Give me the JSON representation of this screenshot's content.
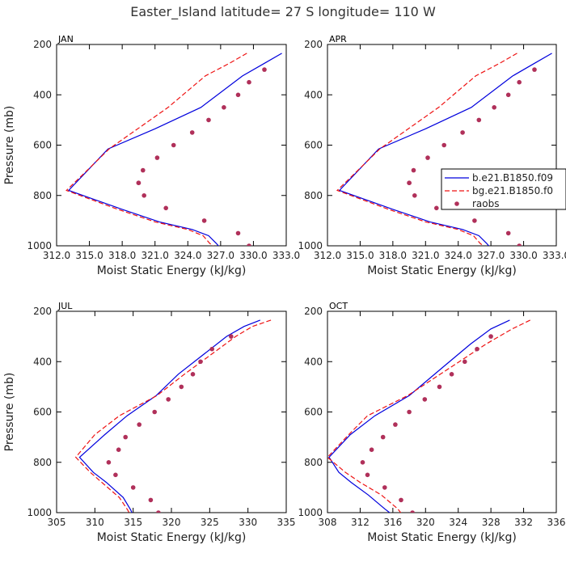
{
  "title": "Easter_Island   latitude= 27 S longitude= 110 W",
  "legend": {
    "entries": [
      {
        "label": "b.e21.B1850.f09",
        "style": "solid",
        "color": "#0000dd"
      },
      {
        "label": "bg.e21.B1850.f0",
        "style": "dashed",
        "color": "#ee1111"
      },
      {
        "label": "raobs",
        "style": "dot",
        "color": "#b0305a"
      }
    ]
  },
  "colors": {
    "model1": "#0000dd",
    "model2": "#ee1111",
    "raobs": "#b0305a"
  },
  "chart_data": [
    {
      "type": "line",
      "panel": "JAN",
      "xlabel": "Moist Static Energy (kJ/kg)",
      "ylabel": "Pressure (mb)",
      "xlim": [
        312.0,
        333.0
      ],
      "ylim": [
        200,
        1000
      ],
      "y_reversed": true,
      "xticks": [
        312.0,
        315.0,
        318.0,
        321.0,
        324.0,
        327.0,
        330.0,
        333.0
      ],
      "xtick_labels": [
        "312.0",
        "315.0",
        "318.0",
        "321.0",
        "324.0",
        "327.0",
        "330.0",
        "333.0"
      ],
      "yticks": [
        200,
        400,
        600,
        800,
        1000
      ],
      "series": [
        {
          "name": "b.e21.B1850.f09",
          "kind": "line",
          "style": "solid",
          "x": [
            332.6,
            331.0,
            329.0,
            325.2,
            321.0,
            316.7,
            313.1,
            318.0,
            321.4,
            324.4,
            325.9,
            326.6,
            327.2
          ],
          "y": [
            235,
            275,
            325,
            450,
            535,
            615,
            780,
            855,
            905,
            935,
            960,
            990,
            1020
          ]
        },
        {
          "name": "bg.e21.B1850.f0",
          "kind": "line",
          "style": "dashed",
          "x": [
            329.4,
            327.8,
            325.6,
            322.2,
            316.8,
            314.8,
            312.9,
            317.6,
            321.0,
            324.0,
            325.4,
            326.0,
            326.6
          ],
          "y": [
            235,
            275,
            325,
            450,
            615,
            700,
            780,
            855,
            905,
            935,
            960,
            990,
            1010
          ]
        },
        {
          "name": "raobs",
          "kind": "scatter",
          "x": [
            331.0,
            329.6,
            328.6,
            327.3,
            325.9,
            324.4,
            322.7,
            321.2,
            319.9,
            319.5,
            319.5,
            320.0,
            322.0,
            325.5,
            328.6,
            329.6
          ],
          "y": [
            300,
            350,
            400,
            450,
            500,
            550,
            600,
            650,
            700,
            750,
            750,
            800,
            850,
            900,
            950,
            1000
          ]
        }
      ]
    },
    {
      "type": "line",
      "panel": "APR",
      "xlabel": "Moist Static Energy (kJ/kg)",
      "ylabel": "",
      "xlim": [
        312.0,
        333.0
      ],
      "ylim": [
        200,
        1000
      ],
      "y_reversed": true,
      "xticks": [
        312.0,
        315.0,
        318.0,
        321.0,
        324.0,
        327.0,
        330.0,
        333.0
      ],
      "xtick_labels": [
        "312.0",
        "315.0",
        "318.0",
        "321.0",
        "324.0",
        "327.0",
        "330.0",
        "333.0"
      ],
      "yticks": [
        200,
        400,
        600,
        800,
        1000
      ],
      "series": [
        {
          "name": "b.e21.B1850.f09",
          "kind": "line",
          "style": "solid",
          "x": [
            332.6,
            331.0,
            329.0,
            325.2,
            321.0,
            316.7,
            313.1,
            318.0,
            321.4,
            324.4,
            325.9,
            326.6,
            327.2
          ],
          "y": [
            235,
            275,
            325,
            450,
            535,
            615,
            780,
            855,
            905,
            935,
            960,
            990,
            1020
          ]
        },
        {
          "name": "bg.e21.B1850.f0",
          "kind": "line",
          "style": "dashed",
          "x": [
            329.4,
            327.8,
            325.6,
            322.2,
            316.8,
            314.8,
            312.9,
            317.6,
            321.0,
            324.0,
            325.4,
            326.0,
            326.6
          ],
          "y": [
            235,
            275,
            325,
            450,
            615,
            700,
            780,
            855,
            905,
            935,
            960,
            990,
            1010
          ]
        },
        {
          "name": "raobs",
          "kind": "scatter",
          "x": [
            331.0,
            329.6,
            328.6,
            327.3,
            325.9,
            324.4,
            322.7,
            321.2,
            319.9,
            319.5,
            319.5,
            320.0,
            322.0,
            325.5,
            328.6,
            329.6
          ],
          "y": [
            300,
            350,
            400,
            450,
            500,
            550,
            600,
            650,
            700,
            750,
            750,
            800,
            850,
            900,
            950,
            1000
          ]
        }
      ]
    },
    {
      "type": "line",
      "panel": "JUL",
      "xlabel": "Moist Static Energy (kJ/kg)",
      "ylabel": "Pressure (mb)",
      "xlim": [
        305,
        335
      ],
      "ylim": [
        200,
        1000
      ],
      "y_reversed": true,
      "xticks": [
        305,
        310,
        315,
        320,
        325,
        330,
        335
      ],
      "xtick_labels": [
        "305",
        "310",
        "315",
        "320",
        "325",
        "330",
        "335"
      ],
      "yticks": [
        200,
        400,
        600,
        800,
        1000
      ],
      "series": [
        {
          "name": "b.e21.B1850.f09",
          "kind": "line",
          "style": "solid",
          "x": [
            331.6,
            329.5,
            327.2,
            320.9,
            318.0,
            314.2,
            311.3,
            308.0,
            309.8,
            311.5,
            313.7,
            314.7,
            315.1
          ],
          "y": [
            235,
            260,
            300,
            450,
            535,
            615,
            690,
            780,
            840,
            880,
            940,
            990,
            1020
          ]
        },
        {
          "name": "bg.e21.B1850.f0",
          "kind": "line",
          "style": "dashed",
          "x": [
            333.0,
            330.6,
            328.4,
            321.7,
            318.1,
            313.2,
            310.0,
            307.5,
            309.4,
            310.9,
            313.2,
            314.3,
            314.8
          ],
          "y": [
            235,
            260,
            300,
            450,
            535,
            615,
            690,
            780,
            840,
            880,
            940,
            990,
            1020
          ]
        },
        {
          "name": "raobs",
          "kind": "scatter",
          "x": [
            327.8,
            325.3,
            323.8,
            322.8,
            321.3,
            319.6,
            317.8,
            315.8,
            314.0,
            313.1,
            311.8,
            312.7,
            315.0,
            317.3,
            318.3
          ],
          "y": [
            300,
            350,
            400,
            450,
            500,
            550,
            600,
            650,
            700,
            750,
            800,
            850,
            900,
            950,
            1000
          ]
        }
      ]
    },
    {
      "type": "line",
      "panel": "OCT",
      "xlabel": "Moist Static Energy (kJ/kg)",
      "ylabel": "",
      "xlim": [
        308,
        336
      ],
      "ylim": [
        200,
        1000
      ],
      "y_reversed": true,
      "xticks": [
        308,
        312,
        316,
        320,
        324,
        328,
        332,
        336
      ],
      "xtick_labels": [
        "308",
        "312",
        "316",
        "320",
        "324",
        "328",
        "332",
        "336"
      ],
      "yticks": [
        200,
        400,
        600,
        800,
        1000
      ],
      "series": [
        {
          "name": "b.e21.B1850.f09",
          "kind": "line",
          "style": "solid",
          "x": [
            330.3,
            328.0,
            325.5,
            322.2,
            318.0,
            313.8,
            310.8,
            308.2,
            309.4,
            310.9,
            313.0,
            315.0,
            316.0
          ],
          "y": [
            235,
            270,
            330,
            420,
            535,
            615,
            690,
            780,
            840,
            880,
            930,
            985,
            1010
          ]
        },
        {
          "name": "bg.e21.B1850.f0",
          "kind": "line",
          "style": "dashed",
          "x": [
            332.8,
            330.6,
            327.4,
            323.2,
            317.8,
            312.9,
            310.6,
            308.0,
            310.2,
            312.0,
            314.6,
            316.6,
            317.2
          ],
          "y": [
            235,
            270,
            330,
            420,
            535,
            615,
            690,
            780,
            840,
            880,
            930,
            985,
            1010
          ]
        },
        {
          "name": "raobs",
          "kind": "scatter",
          "x": [
            328.0,
            326.3,
            324.8,
            323.2,
            321.7,
            319.9,
            318.0,
            316.3,
            314.8,
            313.4,
            312.3,
            312.9,
            315.0,
            317.0,
            318.4
          ],
          "y": [
            300,
            350,
            400,
            450,
            500,
            550,
            600,
            650,
            700,
            750,
            800,
            850,
            900,
            950,
            1000
          ]
        }
      ]
    }
  ]
}
